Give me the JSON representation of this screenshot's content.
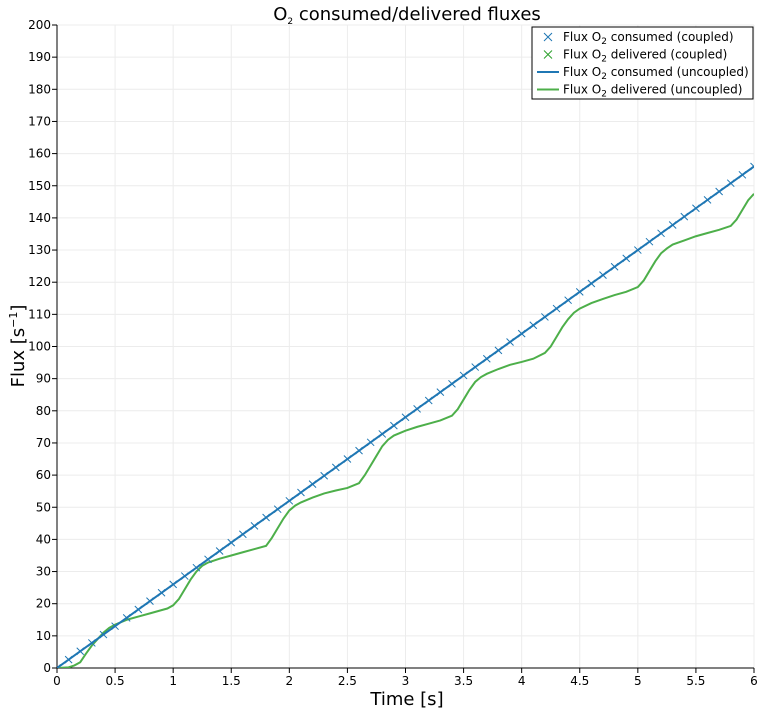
{
  "chart_data": {
    "type": "line",
    "title": {
      "prefix": "O",
      "sub": "2",
      "suffix": " consumed/delivered fluxes"
    },
    "xlabel": "Time [s]",
    "ylabel": {
      "prefix": "Flux [s",
      "sup": "−1",
      "suffix": "]"
    },
    "xlim": [
      0,
      6
    ],
    "ylim": [
      0,
      200
    ],
    "xticks": [
      0,
      0.5,
      1,
      1.5,
      2,
      2.5,
      3,
      3.5,
      4,
      4.5,
      5,
      5.5,
      6
    ],
    "xtick_labels": [
      "0",
      "0.5",
      "1",
      "1.5",
      "2",
      "2.5",
      "3",
      "3.5",
      "4",
      "4.5",
      "5",
      "5.5",
      "6"
    ],
    "yticks": [
      0,
      10,
      20,
      30,
      40,
      50,
      60,
      70,
      80,
      90,
      100,
      110,
      120,
      130,
      140,
      150,
      160,
      170,
      180,
      190,
      200
    ],
    "ytick_labels": [
      "0",
      "10",
      "20",
      "30",
      "40",
      "50",
      "60",
      "70",
      "80",
      "90",
      "100",
      "110",
      "120",
      "130",
      "140",
      "150",
      "160",
      "170",
      "180",
      "190",
      "200"
    ],
    "grid": true,
    "legend_position": "top-right",
    "series": [
      {
        "name": {
          "prefix": "Flux O",
          "sub": "2",
          "suffix": " consumed (coupled)"
        },
        "style": "markers",
        "color": "#1f77b4",
        "x": [
          0,
          0.1,
          0.2,
          0.3,
          0.4,
          0.5,
          0.6,
          0.7,
          0.8,
          0.9,
          1.0,
          1.1,
          1.2,
          1.3,
          1.4,
          1.5,
          1.6,
          1.7,
          1.8,
          1.9,
          2.0,
          2.1,
          2.2,
          2.3,
          2.4,
          2.5,
          2.6,
          2.7,
          2.8,
          2.9,
          3.0,
          3.1,
          3.2,
          3.3,
          3.4,
          3.5,
          3.6,
          3.7,
          3.8,
          3.9,
          4.0,
          4.1,
          4.2,
          4.3,
          4.4,
          4.5,
          4.6,
          4.7,
          4.8,
          4.9,
          5.0,
          5.1,
          5.2,
          5.3,
          5.4,
          5.5,
          5.6,
          5.7,
          5.8,
          5.9,
          6.0
        ],
        "y": [
          0,
          2.6,
          5.2,
          7.8,
          10.4,
          13,
          15.6,
          18.2,
          20.8,
          23.4,
          26,
          28.6,
          31.2,
          33.8,
          36.4,
          39,
          41.6,
          44.2,
          46.8,
          49.4,
          52,
          54.6,
          57.2,
          59.8,
          62.4,
          65,
          67.6,
          70.2,
          72.8,
          75.4,
          78,
          80.6,
          83.2,
          85.8,
          88.4,
          91,
          93.6,
          96.2,
          98.8,
          101.4,
          104,
          106.6,
          109.2,
          111.8,
          114.4,
          117,
          119.6,
          122.2,
          124.8,
          127.4,
          130,
          132.6,
          135.2,
          137.8,
          140.4,
          143,
          145.6,
          148.2,
          150.8,
          153.4,
          156
        ]
      },
      {
        "name": {
          "prefix": "Flux O",
          "sub": "2",
          "suffix": " delivered (coupled)"
        },
        "style": "markers",
        "color": "#2ca02c",
        "x": [],
        "y": []
      },
      {
        "name": {
          "prefix": "Flux O",
          "sub": "2",
          "suffix": " consumed (uncoupled)"
        },
        "style": "line",
        "color": "#1f77b4",
        "x": [
          0,
          0.5,
          1,
          1.5,
          2,
          2.5,
          3,
          3.5,
          4,
          4.5,
          5,
          5.5,
          6
        ],
        "y": [
          0,
          13,
          26,
          39,
          52,
          65,
          78,
          91,
          104,
          117,
          130,
          143,
          156
        ]
      },
      {
        "name": {
          "prefix": "Flux O",
          "sub": "2",
          "suffix": " delivered (uncoupled)"
        },
        "style": "line",
        "color": "#4daf4a",
        "x": [
          0,
          0.1,
          0.15,
          0.2,
          0.25,
          0.3,
          0.35,
          0.4,
          0.45,
          0.5,
          0.6,
          0.7,
          0.8,
          0.9,
          0.95,
          1.0,
          1.05,
          1.1,
          1.15,
          1.2,
          1.25,
          1.3,
          1.4,
          1.5,
          1.6,
          1.7,
          1.8,
          1.85,
          1.9,
          1.95,
          2.0,
          2.05,
          2.1,
          2.2,
          2.3,
          2.4,
          2.5,
          2.6,
          2.65,
          2.7,
          2.75,
          2.8,
          2.85,
          2.9,
          3.0,
          3.1,
          3.2,
          3.3,
          3.4,
          3.45,
          3.5,
          3.55,
          3.6,
          3.65,
          3.7,
          3.8,
          3.9,
          4.0,
          4.1,
          4.2,
          4.25,
          4.3,
          4.35,
          4.4,
          4.45,
          4.5,
          4.6,
          4.7,
          4.8,
          4.9,
          5.0,
          5.05,
          5.1,
          5.15,
          5.2,
          5.25,
          5.3,
          5.4,
          5.5,
          5.6,
          5.7,
          5.8,
          5.85,
          5.9,
          5.95,
          6.0
        ],
        "y": [
          0,
          0.2,
          0.8,
          1.8,
          4.5,
          7,
          9,
          11,
          12.5,
          13.5,
          15,
          16,
          17,
          18,
          18.5,
          19.5,
          21.5,
          24.5,
          27.5,
          30,
          31.8,
          32.8,
          34,
          35,
          36,
          37,
          38,
          40.5,
          43.5,
          46.5,
          49,
          50.5,
          51.5,
          53,
          54.3,
          55.2,
          56,
          57.5,
          60,
          63,
          66,
          69,
          71,
          72.3,
          73.8,
          75,
          76,
          77,
          78.5,
          80.5,
          83.5,
          86.5,
          89,
          90.5,
          91.5,
          93,
          94.3,
          95.2,
          96.2,
          98,
          100,
          103,
          106,
          108.5,
          110.5,
          111.8,
          113.5,
          114.8,
          116,
          117,
          118.5,
          120.5,
          123.5,
          126.5,
          129,
          130.5,
          131.7,
          133,
          134.3,
          135.3,
          136.3,
          137.5,
          139.5,
          142.5,
          145.5,
          147.5
        ]
      }
    ]
  }
}
